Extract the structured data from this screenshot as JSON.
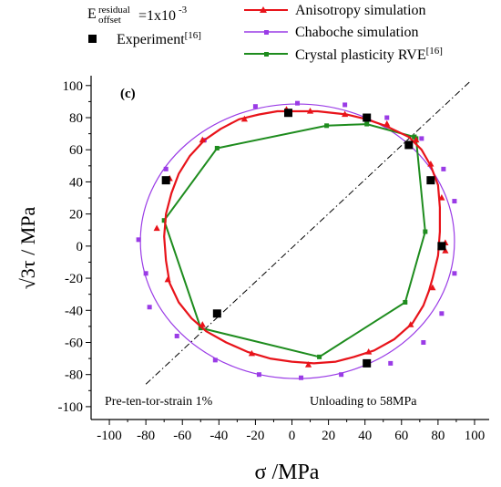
{
  "chart_data": {
    "type": "scatter",
    "panel_label": "(c)",
    "xlabel": "σ /MPa",
    "ylabel": "√3τ / MPa",
    "xlim": [
      -110,
      108
    ],
    "ylim": [
      -108,
      105
    ],
    "x_ticks": [
      -100,
      -80,
      -60,
      -40,
      -20,
      0,
      20,
      40,
      60,
      80,
      100
    ],
    "y_ticks": [
      -100,
      -80,
      -60,
      -40,
      -20,
      0,
      20,
      40,
      60,
      80,
      100
    ],
    "grid": false,
    "legend_position": "top",
    "annotations": {
      "residual_offset_prefix": "E",
      "residual_offset_super": "residual",
      "residual_offset_sub": "offset",
      "residual_offset_value": "=1x10",
      "residual_offset_exp": "-3",
      "bottom_left": "Pre-ten-tor-strain 1%",
      "bottom_right": "Unloading to 58MPa",
      "experiment_ref": "[16]",
      "crystal_ref": "[16]"
    },
    "reference_line": {
      "x": [
        -80,
        98
      ],
      "y": [
        -86,
        103
      ]
    },
    "series": [
      {
        "name": "Experiment",
        "kind": "square",
        "color": "#000000",
        "x": [
          -2,
          41,
          64,
          76,
          82,
          41,
          -41,
          -69
        ],
        "y": [
          83,
          80,
          63,
          41,
          0,
          -73,
          -42,
          41
        ]
      },
      {
        "name": "Anisotropy simulation",
        "kind": "line-triangle",
        "color": "#e8131a",
        "x": [
          -4,
          14,
          30,
          41,
          51,
          64,
          71,
          76,
          80,
          81,
          81,
          80,
          77,
          75,
          72,
          66,
          56,
          45,
          34,
          24,
          12,
          0,
          -12,
          -24,
          -36,
          -47,
          -55,
          -62,
          -67,
          -69,
          -70,
          -69,
          -66,
          -62,
          -56,
          -48,
          -39,
          -29,
          -18,
          -8
        ],
        "y": [
          84,
          84,
          82,
          79,
          75,
          68,
          60,
          50,
          38,
          24,
          9,
          -6,
          -20,
          -28,
          -37,
          -48,
          -58,
          -65,
          -69,
          -72,
          -73,
          -72,
          -70,
          -66,
          -60,
          -53,
          -45,
          -35,
          -23,
          -9,
          6,
          20,
          33,
          45,
          56,
          66,
          73,
          79,
          82,
          84
        ],
        "marker_x": [
          -3,
          10,
          29,
          52,
          68,
          76,
          82,
          84,
          84,
          77,
          65,
          42,
          9,
          -22,
          -49,
          -68,
          -74,
          -67,
          -49,
          -26
        ],
        "marker_y": [
          85,
          84,
          82,
          76,
          66,
          51,
          30,
          2,
          -3,
          -26,
          -49,
          -66,
          -74,
          -67,
          -49,
          -21,
          11,
          42,
          66,
          79
        ]
      },
      {
        "name": "Chaboche simulation",
        "kind": "line-square",
        "color": "#9a3be6",
        "center": [
          3,
          3
        ],
        "radii": [
          86,
          85.5
        ],
        "marker_x": [
          -20,
          3,
          29,
          52,
          71,
          83,
          89,
          89,
          82,
          72,
          54,
          27,
          5,
          -18,
          -42,
          -63,
          -78,
          -84,
          -80,
          -69,
          -48
        ],
        "marker_y": [
          87,
          89,
          88,
          80,
          67,
          48,
          28,
          -17,
          -42,
          -60,
          -73,
          -80,
          -82,
          -80,
          -71,
          -56,
          -38,
          4,
          -17,
          48,
          66
        ]
      },
      {
        "name": "Crystal plasticity RVE",
        "kind": "line-square",
        "color": "#1e8c1e",
        "x": [
          67,
          41,
          19,
          -41,
          -70,
          -50,
          15,
          62,
          73,
          68,
          67
        ],
        "y": [
          68,
          76,
          75,
          61,
          16,
          -51,
          -69,
          -35,
          9,
          67,
          68
        ]
      }
    ]
  }
}
